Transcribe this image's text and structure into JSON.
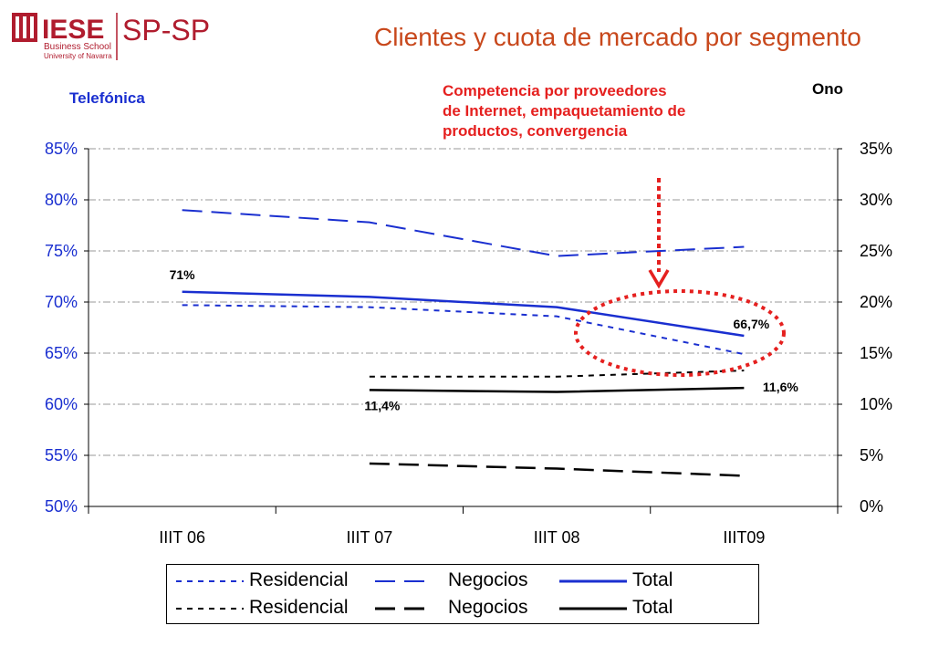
{
  "header": {
    "logo": {
      "brand": "IESE",
      "sub1": "Business School",
      "sub2": "University of Navarra",
      "dept": "SP-SP",
      "color": "#b01c2e"
    },
    "title": "Clientes y cuota de mercado por segmento"
  },
  "annotation": {
    "lines": [
      "Competencia por proveedores",
      "de Internet, empaquetamiento de",
      "productos, convergencia"
    ],
    "color": "#e5201f"
  },
  "chart_data": {
    "type": "line",
    "categories": [
      "IIIT 06",
      "IIIT 07",
      "IIIT 08",
      "IIIT09"
    ],
    "y_left": {
      "label": "Telefónica",
      "ylim": [
        0.5,
        0.85
      ],
      "ticks": [
        "50%",
        "55%",
        "60%",
        "65%",
        "70%",
        "75%",
        "80%",
        "85%"
      ],
      "color": "#1a2fd0"
    },
    "y_right": {
      "label": "Ono",
      "ylim": [
        0,
        0.35
      ],
      "ticks": [
        "0%",
        "5%",
        "10%",
        "15%",
        "20%",
        "25%",
        "30%",
        "35%"
      ],
      "color": "#000000"
    },
    "grid": true,
    "series": [
      {
        "name": "Residencial",
        "axis": "left",
        "color": "#1a2fd0",
        "style": "dotted",
        "values": [
          0.697,
          0.695,
          0.686,
          0.649
        ]
      },
      {
        "name": "Negocios",
        "axis": "left",
        "color": "#1a2fd0",
        "style": "dashed",
        "values": [
          0.79,
          0.778,
          0.745,
          0.754
        ]
      },
      {
        "name": "Total",
        "axis": "left",
        "color": "#1a2fd0",
        "style": "solid",
        "values": [
          0.71,
          0.705,
          0.695,
          0.667
        ]
      },
      {
        "name": "Residencial",
        "axis": "right",
        "color": "#000000",
        "style": "dotted",
        "values": [
          null,
          0.127,
          0.127,
          0.133
        ]
      },
      {
        "name": "Negocios",
        "axis": "right",
        "color": "#000000",
        "style": "dashed",
        "values": [
          null,
          0.042,
          0.037,
          0.03
        ]
      },
      {
        "name": "Total",
        "axis": "right",
        "color": "#000000",
        "style": "solid",
        "values": [
          null,
          0.114,
          0.112,
          0.116
        ]
      }
    ],
    "data_labels": [
      {
        "text": "71%",
        "series": 2,
        "index": 0
      },
      {
        "text": "66,7%",
        "series": 2,
        "index": 3
      },
      {
        "text": "11,4%",
        "series": 5,
        "index": 1
      },
      {
        "text": "11,6%",
        "series": 5,
        "index": 3
      }
    ],
    "legend_placement": "bottom"
  }
}
